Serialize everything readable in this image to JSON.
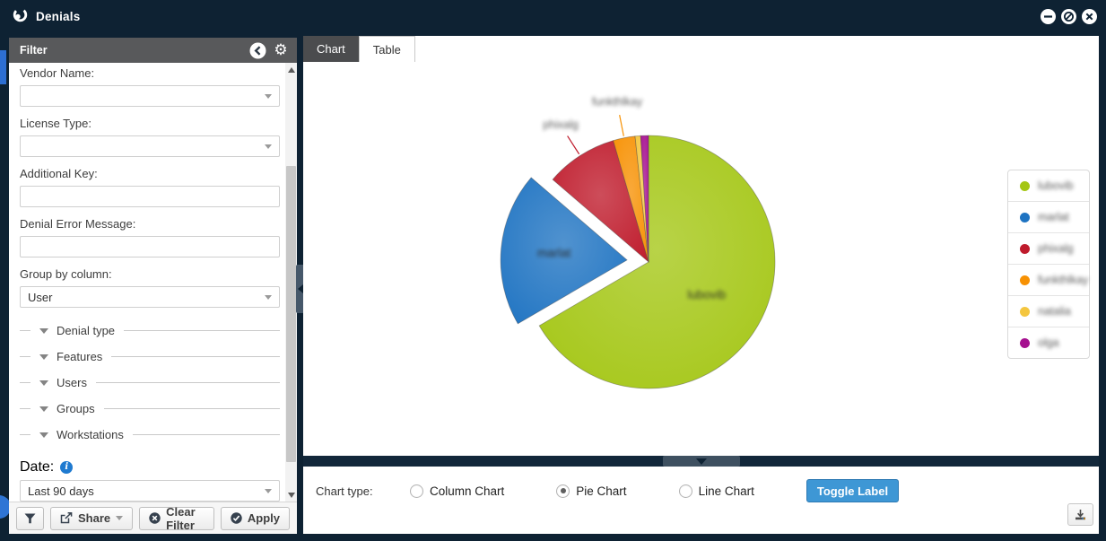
{
  "window": {
    "title": "Denials",
    "icon": "app-logo-swirl-icon",
    "controls": [
      {
        "name": "minimize",
        "glyph": "minus"
      },
      {
        "name": "restore",
        "glyph": "ban"
      },
      {
        "name": "close",
        "glyph": "x"
      }
    ]
  },
  "sidebar": {
    "header": {
      "title": "Filter",
      "icons": [
        "collapse-left-icon",
        "settings-gear-icon"
      ]
    },
    "fields": [
      {
        "label": "Vendor Name:",
        "type": "select",
        "value": ""
      },
      {
        "label": "License Type:",
        "type": "select",
        "value": ""
      },
      {
        "label": "Additional Key:",
        "type": "text",
        "value": ""
      },
      {
        "label": "Denial Error Message:",
        "type": "text",
        "value": ""
      },
      {
        "label": "Group by column:",
        "type": "select",
        "value": "User"
      }
    ],
    "groups": [
      "Denial type",
      "Features",
      "Users",
      "Groups",
      "Workstations"
    ],
    "date": {
      "label": "Date:",
      "info_icon": "info-icon",
      "value": "Last 90 days"
    },
    "footer": {
      "filter_icon": "funnel-icon",
      "share_label": "Share",
      "clear_label": "Clear Filter",
      "apply_label": "Apply"
    }
  },
  "main": {
    "tabs": [
      {
        "label": "Chart",
        "active": true
      },
      {
        "label": "Table",
        "active": false
      }
    ],
    "controls": {
      "chart_type_label": "Chart type:",
      "options": [
        {
          "label": "Column Chart",
          "selected": false
        },
        {
          "label": "Pie Chart",
          "selected": true
        },
        {
          "label": "Line Chart",
          "selected": false
        }
      ],
      "toggle_button_label": "Toggle Label",
      "accent_color": "#3e97d5"
    },
    "download_icon": "download-icon"
  },
  "chart_data": {
    "type": "pie",
    "labels": [
      "lubovib",
      "marlat",
      "phixalg",
      "funkthlkay",
      "natalia",
      "olga"
    ],
    "values": [
      66.6,
      19.7,
      9.2,
      2.8,
      0.7,
      1.0
    ],
    "colors": [
      "#a4c614",
      "#1e73c2",
      "#bf1b2c",
      "#f79103",
      "#f4c63f",
      "#a5108f"
    ],
    "exploded_slice": "marlat",
    "slice_labels": [
      "lubovib",
      "marlat"
    ],
    "callout_labels": [
      "phixalg",
      "funkthlkay"
    ],
    "legend_position": "right",
    "labels_blurred": true
  }
}
